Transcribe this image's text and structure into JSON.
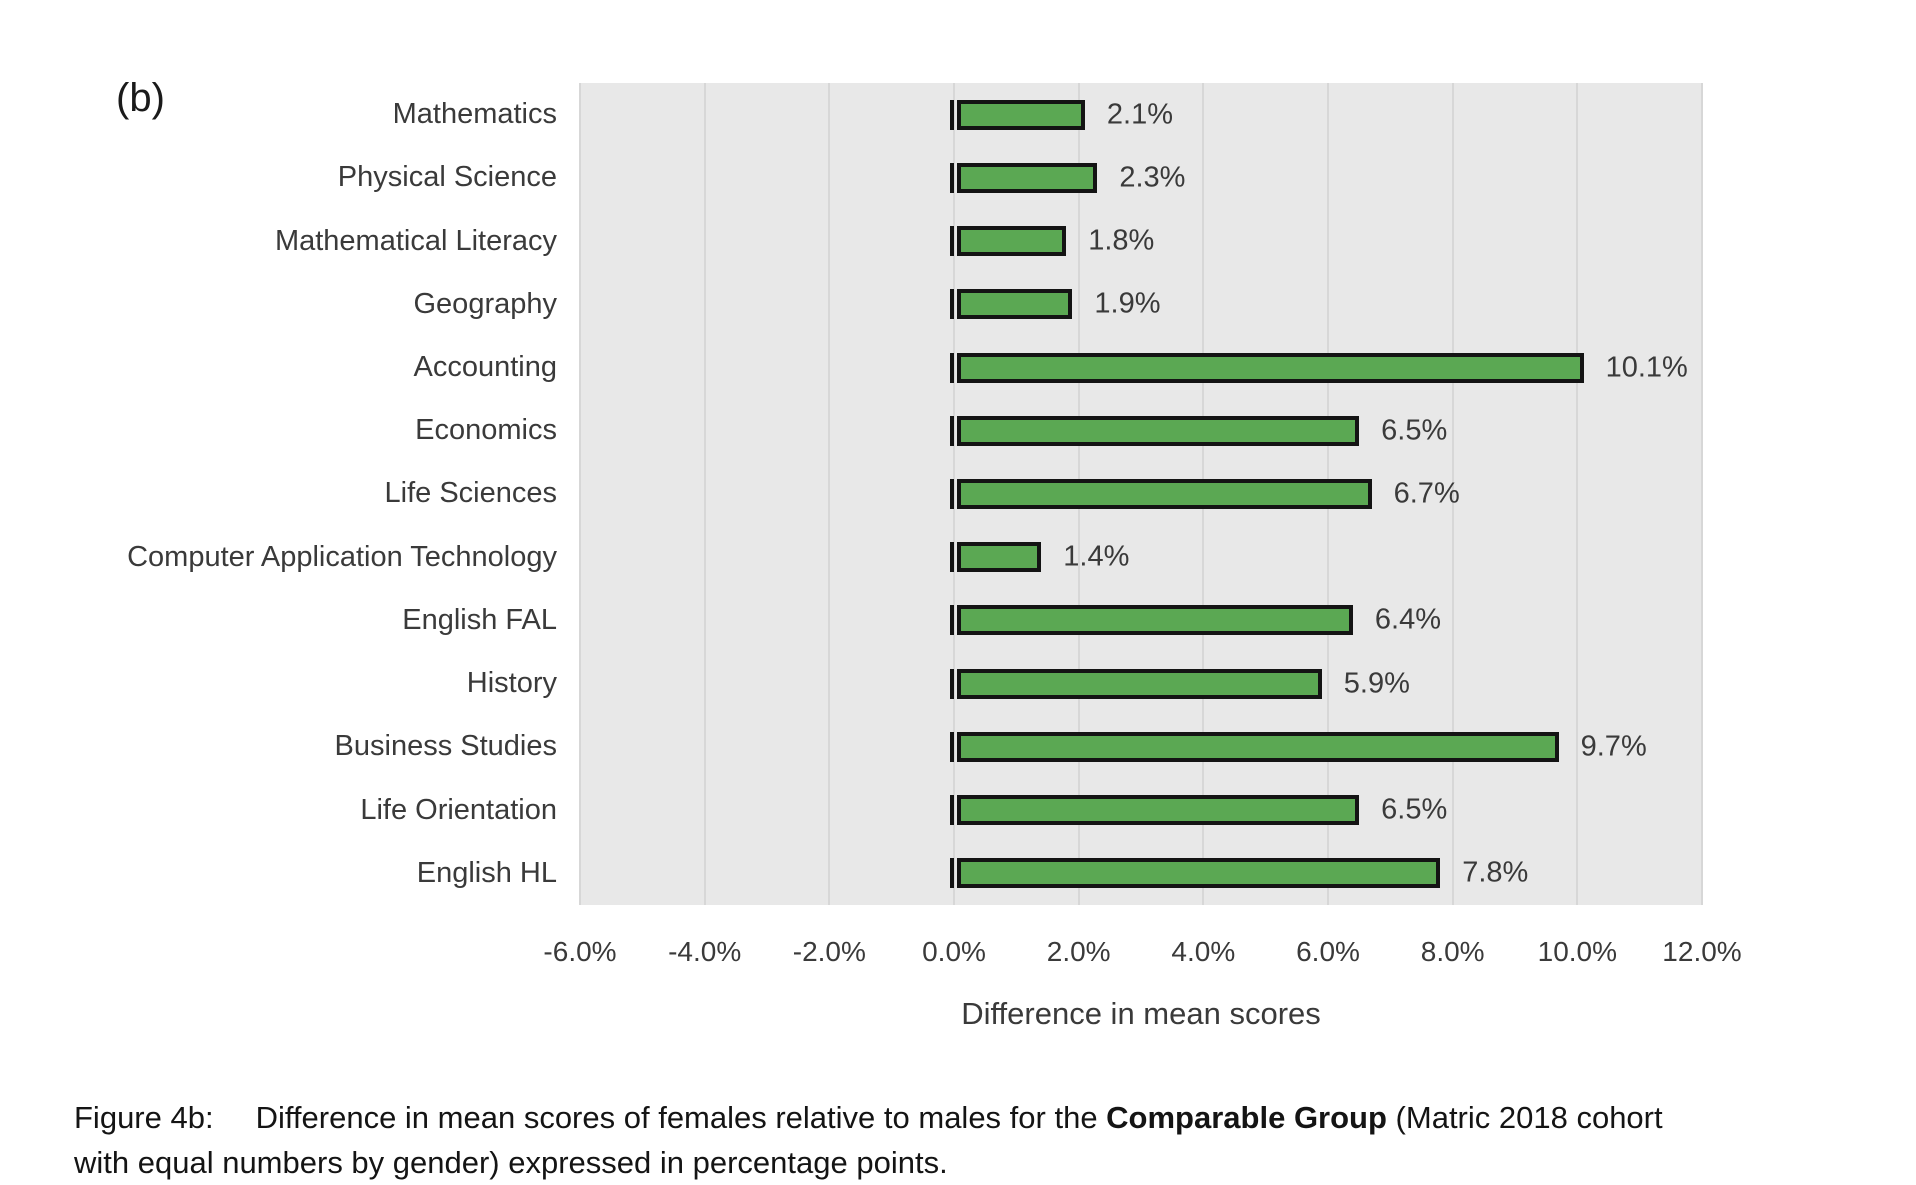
{
  "figure": {
    "panel_label": "(b)"
  },
  "chart_data": {
    "type": "bar",
    "orientation": "horizontal",
    "title": "",
    "xlabel": "Difference in mean scores",
    "ylabel": "",
    "xlim": [
      -6,
      12
    ],
    "grid": true,
    "legend": false,
    "x_ticks": [
      "-6.0%",
      "-4.0%",
      "-2.0%",
      "0.0%",
      "2.0%",
      "4.0%",
      "6.0%",
      "8.0%",
      "10.0%",
      "12.0%"
    ],
    "categories": [
      "Mathematics",
      "Physical Science",
      "Mathematical Literacy",
      "Geography",
      "Accounting",
      "Economics",
      "Life Sciences",
      "Computer Application Technology",
      "English FAL",
      "History",
      "Business Studies",
      "Life Orientation",
      "English HL"
    ],
    "values": [
      2.1,
      2.3,
      1.8,
      1.9,
      10.1,
      6.5,
      6.7,
      1.4,
      6.4,
      5.9,
      9.7,
      6.5,
      7.8
    ],
    "value_labels": [
      "2.1%",
      "2.3%",
      "1.8%",
      "1.9%",
      "10.1%",
      "6.5%",
      "6.7%",
      "1.4%",
      "6.4%",
      "5.9%",
      "9.7%",
      "6.5%",
      "7.8%"
    ],
    "colors": {
      "bar_fill": "#5ba853",
      "bar_border": "#141414",
      "plot_bg": "#e8e8e8",
      "gridline": "#d7d7d7",
      "axis_text": "#3a3a3a"
    }
  },
  "caption": {
    "label": "Figure 4b:",
    "line1_before_bold": "Difference in mean scores of females relative to males for the ",
    "line1_bold": "Comparable Group",
    "line1_after_bold": " (Matric 2018 cohort",
    "line2": "with equal numbers by gender) expressed in percentage points."
  }
}
